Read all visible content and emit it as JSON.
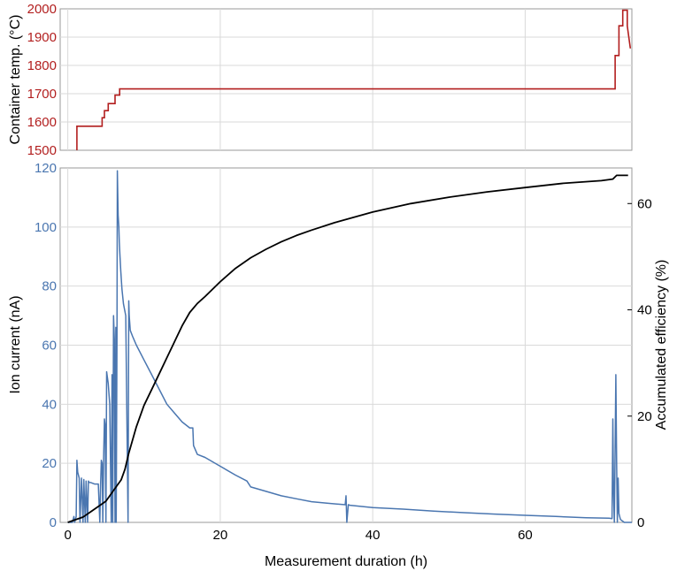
{
  "colors": {
    "temperature": "#b21e1e",
    "ion_current": "#4a76b0",
    "efficiency": "#000000",
    "grid": "#d9d9d9",
    "frame": "#9a9a9a"
  },
  "chart_data": [
    {
      "type": "line",
      "ylabel": "Container temp. (°C)",
      "xlim": [
        -1,
        74
      ],
      "ylim": [
        1500,
        2000
      ],
      "yticks": [
        1500,
        1600,
        1700,
        1800,
        1900,
        2000
      ],
      "grid": true,
      "series": [
        {
          "x": [
            1.2,
            1.2,
            4.5,
            4.5,
            4.8,
            4.8,
            5.3,
            5.3,
            6.2,
            6.2,
            6.8,
            6.8,
            71.8,
            71.8,
            72.3,
            72.3,
            72.8,
            72.8,
            73.4,
            73.4,
            73.8
          ],
          "y": [
            1500,
            1585,
            1585,
            1615,
            1615,
            1640,
            1640,
            1665,
            1665,
            1695,
            1695,
            1717,
            1717,
            1835,
            1835,
            1940,
            1940,
            1995,
            1995,
            1940,
            1860
          ]
        }
      ]
    },
    {
      "type": "line",
      "xlabel": "Measurement duration (h)",
      "ylabel": "Ion current (nA)",
      "y2label": "Accumulated efficiency (%)",
      "xlim": [
        -1,
        74
      ],
      "ylim": [
        0,
        120
      ],
      "y2lim": [
        0,
        66.7
      ],
      "xticks": [
        0,
        20,
        40,
        60
      ],
      "yticks": [
        0,
        20,
        40,
        60,
        80,
        100,
        120
      ],
      "y2ticks": [
        0,
        20,
        40,
        60
      ],
      "grid": true,
      "series": [
        {
          "axis": "left",
          "x": [
            0,
            0.6,
            0.8,
            0.9,
            1.0,
            1.1,
            1.2,
            1.3,
            1.5,
            1.6,
            1.8,
            2.0,
            2.1,
            2.3,
            2.4,
            2.6,
            2.7,
            2.8,
            3.0,
            3.5,
            4.0,
            4.2,
            4.3,
            4.4,
            4.5,
            4.6,
            4.7,
            4.8,
            4.9,
            5.0,
            5.1,
            5.3,
            5.5,
            5.7,
            5.8,
            5.9,
            6.0,
            6.1,
            6.2,
            6.3,
            6.35,
            6.45,
            6.5,
            6.6,
            6.7,
            6.75,
            6.85,
            6.95,
            7.1,
            7.3,
            7.6,
            7.9,
            8.0,
            8.05,
            8.2,
            8.5,
            9,
            10,
            11,
            12,
            13,
            14,
            15,
            16,
            16.4,
            16.5,
            17,
            18,
            20,
            22,
            23.5,
            24,
            26,
            28,
            30,
            32,
            34,
            36.4,
            36.5,
            36.6,
            36.8,
            37,
            40,
            44,
            48,
            52,
            56,
            60,
            64,
            68,
            71,
            71.4,
            71.5,
            71.6,
            71.7,
            71.8,
            71.9,
            72.0,
            72.1,
            72.2,
            72.3,
            72.5,
            73,
            74
          ],
          "y": [
            0,
            0,
            2,
            0,
            1,
            2,
            21,
            17,
            15,
            0,
            15,
            0,
            14.5,
            0,
            14,
            0,
            14,
            13.5,
            13.5,
            13,
            13,
            0,
            13,
            21,
            20,
            0,
            22,
            35,
            33,
            0,
            51,
            47,
            40,
            0,
            50,
            0,
            70,
            62,
            0,
            66,
            0,
            63,
            119,
            104,
            100,
            95,
            90,
            85,
            79,
            74,
            70,
            0,
            75,
            70,
            65,
            63,
            60,
            55,
            50,
            45,
            40,
            37,
            34,
            32,
            32,
            26,
            23,
            22,
            19,
            16,
            14,
            12,
            10.5,
            9,
            8,
            7,
            6.5,
            6,
            9,
            0,
            6,
            5.8,
            5,
            4.5,
            3.8,
            3.3,
            2.8,
            2.4,
            2,
            1.6,
            1.4,
            1.3,
            35,
            10,
            0,
            25,
            50,
            20,
            0,
            15,
            3,
            1,
            0,
            0
          ]
        },
        {
          "axis": "right",
          "x": [
            0,
            1,
            2,
            3,
            4,
            5,
            6,
            7,
            7.5,
            8,
            9,
            10,
            11,
            12,
            13,
            14,
            15,
            16,
            17,
            18,
            20,
            22,
            24,
            26,
            28,
            30,
            32,
            35,
            40,
            45,
            50,
            55,
            60,
            65,
            70,
            71.5,
            72.0,
            73.5
          ],
          "y": [
            0,
            0.5,
            1,
            2,
            3,
            4,
            6,
            8,
            10,
            13,
            18,
            22,
            25,
            28,
            31,
            34,
            37,
            39.5,
            41.2,
            42.5,
            45.3,
            47.8,
            49.8,
            51.4,
            52.8,
            54,
            55,
            56.4,
            58.4,
            60,
            61.2,
            62.2,
            63,
            63.8,
            64.3,
            64.6,
            65.3,
            65.3
          ]
        }
      ]
    }
  ]
}
